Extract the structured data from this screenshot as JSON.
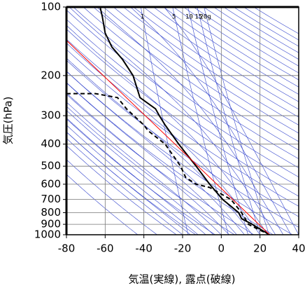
{
  "chart_data": {
    "type": "sounding",
    "xlabel": "気温(実線), 露点(破線)",
    "ylabel": "気圧(hPa)",
    "xlim": [
      -80,
      40
    ],
    "xticks": [
      -80,
      -60,
      -40,
      -20,
      0,
      20,
      40
    ],
    "ylim": [
      1000,
      100
    ],
    "yticks": [
      100,
      200,
      300,
      400,
      500,
      600,
      700,
      800,
      900,
      1000
    ],
    "log_y": true,
    "grid": true,
    "mixing_ratio_lines": [
      {
        "value": 1,
        "label": "1"
      },
      {
        "value": 5,
        "label": "5"
      },
      {
        "value": 10,
        "label": "10"
      },
      {
        "value": 15,
        "label": "15"
      },
      {
        "value": 20,
        "label": "20g"
      }
    ],
    "series": [
      {
        "color": "#000000",
        "dashed": false,
        "x": [
          -62.6,
          -61.5,
          -60,
          -56.5,
          -51,
          -45.6,
          -42,
          -34,
          -32,
          -29,
          -22,
          -13,
          -6,
          0.7,
          9,
          10.5,
          16,
          20.6,
          25
        ],
        "y": [
          100,
          110,
          130,
          150,
          170,
          200,
          250,
          280,
          300,
          330,
          400,
          500,
          600,
          700,
          800,
          850,
          900,
          950,
          1000
        ]
      },
      {
        "color": "#000000",
        "dashed": true,
        "x": [
          -80,
          -65,
          -53.6,
          -49,
          -40,
          -37.7,
          -29,
          -21,
          -18.4,
          -13,
          -6,
          5,
          10.5,
          14,
          19.5,
          25
        ],
        "y": [
          240,
          240,
          250,
          280,
          330,
          350,
          400,
          500,
          560,
          600,
          620,
          700,
          800,
          900,
          950,
          1000
        ]
      },
      {
        "color": "#ff0000",
        "dashed": false,
        "x": [
          -80,
          25
        ],
        "y": [
          140,
          1000
        ]
      }
    ]
  }
}
